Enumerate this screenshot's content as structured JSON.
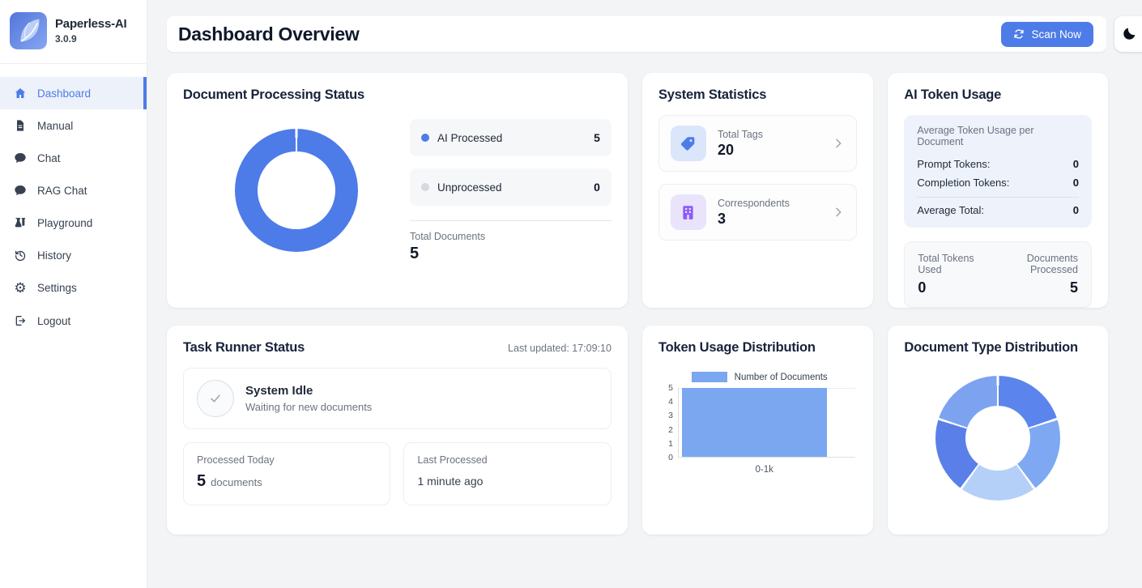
{
  "app": {
    "name": "Paperless-AI",
    "version": "3.0.9"
  },
  "sidebar": {
    "items": [
      {
        "label": "Dashboard",
        "icon": "home-icon",
        "active": true
      },
      {
        "label": "Manual",
        "icon": "document-icon",
        "active": false
      },
      {
        "label": "Chat",
        "icon": "chat-bubble-icon",
        "active": false
      },
      {
        "label": "RAG Chat",
        "icon": "chat-bubble-icon",
        "active": false
      },
      {
        "label": "Playground",
        "icon": "flask-vial-icon",
        "active": false
      },
      {
        "label": "History",
        "icon": "clock-rotate-left-icon",
        "active": false
      },
      {
        "label": "Settings",
        "icon": "gear-icon",
        "active": false
      },
      {
        "label": "Logout",
        "icon": "logout-icon",
        "active": false
      }
    ]
  },
  "header": {
    "title": "Dashboard Overview",
    "scan_button_label": "Scan Now",
    "theme_toggle_icon": "moon-icon"
  },
  "colors": {
    "primary_blue": "#4d7ce8",
    "bar_blue": "#7aa7f0",
    "unprocessed_gray": "#d5d8de",
    "tag_icon_blue": "#4d7ce8",
    "correspondent_purple": "#8b5cf6",
    "sidebar_active_bg": "#edf1f9",
    "page_background": "#f3f4f6"
  },
  "cards": {
    "doc_processing": {
      "title": "Document Processing Status",
      "legend": [
        {
          "label": "AI Processed",
          "value": "5"
        },
        {
          "label": "Unprocessed",
          "value": "0"
        }
      ],
      "total_label": "Total Documents",
      "total_value": "5"
    },
    "system_stats": {
      "title": "System Statistics",
      "items": [
        {
          "label": "Total Tags",
          "value": "20",
          "icon": "tag-icon"
        },
        {
          "label": "Correspondents",
          "value": "3",
          "icon": "building-icon"
        }
      ]
    },
    "token_usage": {
      "title": "AI Token Usage",
      "avg_section_title": "Average Token Usage per Document",
      "prompt_label": "Prompt Tokens:",
      "prompt_value": "0",
      "completion_label": "Completion Tokens:",
      "completion_value": "0",
      "avg_total_label": "Average Total:",
      "avg_total_value": "0",
      "total_used_label": "Total Tokens Used",
      "total_used_value": "0",
      "docs_processed_label": "Documents Processed",
      "docs_processed_value": "5"
    },
    "task_runner": {
      "title": "Task Runner Status",
      "last_updated": "Last updated: 17:09:10",
      "status_title": "System Idle",
      "status_subtitle": "Waiting for new documents",
      "processed_today_label": "Processed Today",
      "processed_today_value": "5",
      "processed_today_unit": "documents",
      "last_processed_label": "Last Processed",
      "last_processed_value": "1 minute ago"
    },
    "token_distribution": {
      "title": "Token Usage Distribution"
    },
    "doc_type": {
      "title": "Document Type Distribution"
    }
  },
  "chart_data": [
    {
      "type": "pie",
      "name": "document-processing-status",
      "donut": true,
      "labels": [
        "AI Processed",
        "Unprocessed"
      ],
      "values": [
        5,
        0
      ],
      "colors": [
        "#4d7ce8",
        "#d5d8de"
      ],
      "total_label": "Total Documents",
      "total": 5,
      "legend_position": "right"
    },
    {
      "type": "bar",
      "name": "token-usage-distribution",
      "categories": [
        "0-1k"
      ],
      "values": [
        5
      ],
      "series_label": "Number of Documents",
      "bar_color": "#7aa7f0",
      "ylim": [
        0,
        5
      ],
      "yticks": [
        5,
        4,
        3,
        2,
        1,
        0
      ],
      "legend_position": "top",
      "grid": false
    },
    {
      "type": "pie",
      "name": "document-type-distribution",
      "donut": true,
      "labels": [
        "",
        "",
        "",
        "",
        ""
      ],
      "values": [
        1,
        1,
        1,
        1,
        1
      ],
      "colors": [
        "#5b85ec",
        "#7ea9f2",
        "#b4d0f9",
        "#5b7fe8",
        "#7da3f0"
      ],
      "legend_position": "none"
    }
  ]
}
